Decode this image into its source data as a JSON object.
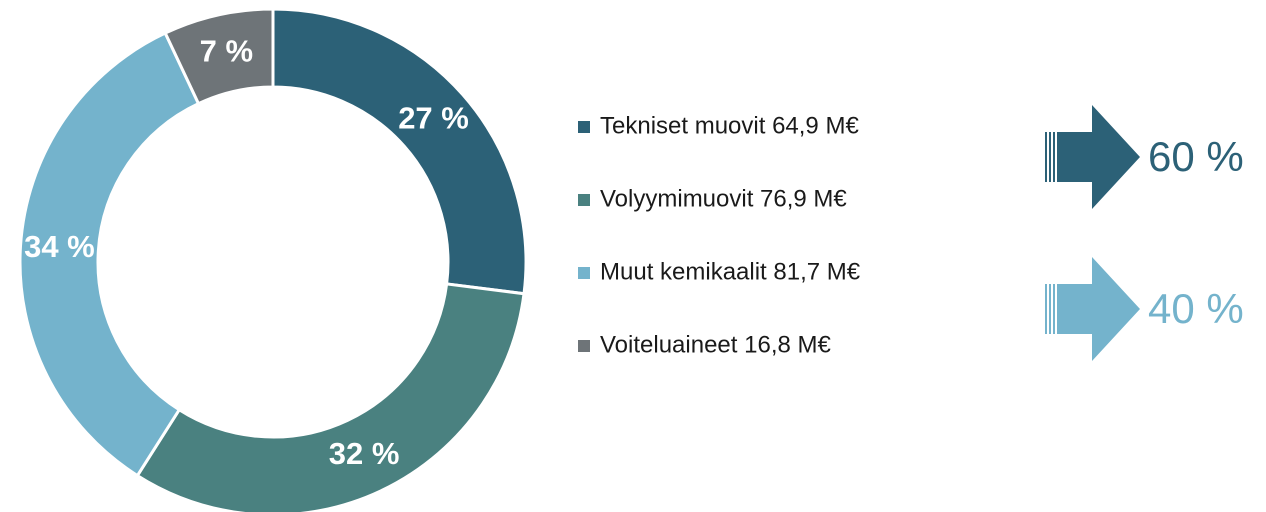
{
  "chart_data": {
    "type": "pie",
    "donut": true,
    "categories": [
      "Tekniset muovit 64,9 M€",
      "Volyymimuovit 76,9 M€",
      "Muut kemikaalit 81,7 M€",
      "Voiteluaineet 16,8 M€"
    ],
    "values": [
      27,
      32,
      34,
      7
    ],
    "value_labels": [
      "27 %",
      "32 %",
      "34 %",
      "7 %"
    ],
    "colors": [
      "#2c6177",
      "#4a8180",
      "#74b3cc",
      "#6e7478"
    ],
    "annotations": [
      {
        "text": "60 %",
        "color": "#2c6177"
      },
      {
        "text": "40 %",
        "color": "#74b3cc"
      }
    ]
  }
}
